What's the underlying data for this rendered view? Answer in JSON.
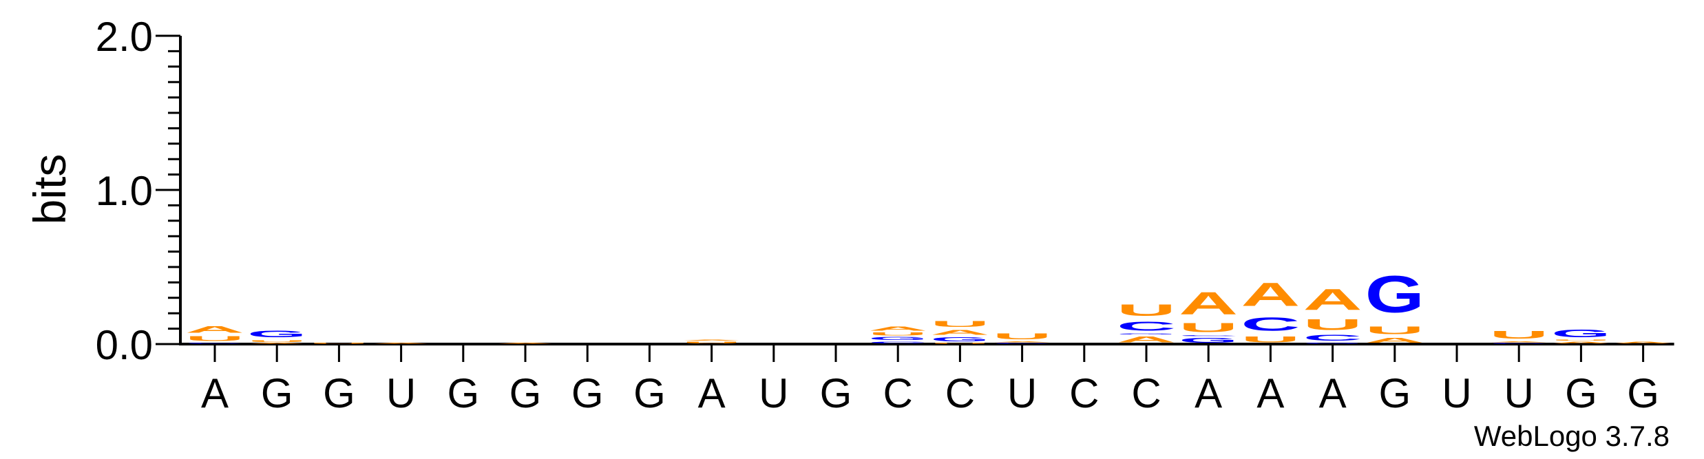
{
  "chart_data": {
    "type": "sequence-logo",
    "ylabel": "bits",
    "ylim": [
      0,
      2.0
    ],
    "yticks": [
      "0.0",
      "1.0",
      "2.0"
    ],
    "y_minor_step": 0.1,
    "grid": false,
    "legend": "none",
    "credit": "WebLogo 3.7.8",
    "colors": {
      "A": "#ff8c00",
      "U": "#ff8c00",
      "G": "#0000ff",
      "C": "#0000ff"
    },
    "positions": [
      {
        "label": "A",
        "stack": [
          {
            "letter": "C",
            "h": 0.01
          },
          {
            "letter": "U",
            "h": 0.05
          },
          {
            "letter": "A",
            "h": 0.07
          }
        ]
      },
      {
        "label": "G",
        "stack": [
          {
            "letter": "A",
            "h": 0.01
          },
          {
            "letter": "U",
            "h": 0.02
          },
          {
            "letter": "G",
            "h": 0.07
          }
        ]
      },
      {
        "label": "G",
        "stack": [
          {
            "letter": "U",
            "h": 0.01
          }
        ]
      },
      {
        "label": "U",
        "stack": [
          {
            "letter": "A",
            "h": 0.01
          }
        ]
      },
      {
        "label": "G",
        "stack": []
      },
      {
        "label": "G",
        "stack": [
          {
            "letter": "A",
            "h": 0.01
          }
        ]
      },
      {
        "label": "G",
        "stack": []
      },
      {
        "label": "G",
        "stack": []
      },
      {
        "label": "A",
        "stack": [
          {
            "letter": "U",
            "h": 0.02
          },
          {
            "letter": "A",
            "h": 0.01
          }
        ]
      },
      {
        "label": "U",
        "stack": []
      },
      {
        "label": "G",
        "stack": []
      },
      {
        "label": "C",
        "stack": [
          {
            "letter": "C",
            "h": 0.02
          },
          {
            "letter": "G",
            "h": 0.03
          },
          {
            "letter": "U",
            "h": 0.03
          },
          {
            "letter": "A",
            "h": 0.04
          }
        ]
      },
      {
        "label": "C",
        "stack": [
          {
            "letter": "U",
            "h": 0.01
          },
          {
            "letter": "G",
            "h": 0.04
          },
          {
            "letter": "A",
            "h": 0.05
          },
          {
            "letter": "U",
            "h": 0.06
          }
        ]
      },
      {
        "label": "U",
        "stack": [
          {
            "letter": "C",
            "h": 0.01
          },
          {
            "letter": "A",
            "h": 0.01
          },
          {
            "letter": "U",
            "h": 0.06
          }
        ]
      },
      {
        "label": "C",
        "stack": []
      },
      {
        "label": "C",
        "stack": [
          {
            "letter": "A",
            "h": 0.06
          },
          {
            "letter": "G",
            "h": 0.01
          },
          {
            "letter": "C",
            "h": 0.09
          },
          {
            "letter": "U",
            "h": 0.12
          }
        ]
      },
      {
        "label": "A",
        "stack": [
          {
            "letter": "G",
            "h": 0.05
          },
          {
            "letter": "C",
            "h": 0.01
          },
          {
            "letter": "U",
            "h": 0.09
          },
          {
            "letter": "A",
            "h": 0.23
          }
        ]
      },
      {
        "label": "A",
        "stack": [
          {
            "letter": "U",
            "h": 0.06
          },
          {
            "letter": "C",
            "h": 0.14
          },
          {
            "letter": "A",
            "h": 0.24
          }
        ]
      },
      {
        "label": "A",
        "stack": [
          {
            "letter": "G",
            "h": 0.01
          },
          {
            "letter": "C",
            "h": 0.06
          },
          {
            "letter": "U",
            "h": 0.11
          },
          {
            "letter": "A",
            "h": 0.22
          }
        ]
      },
      {
        "label": "G",
        "stack": [
          {
            "letter": "A",
            "h": 0.05
          },
          {
            "letter": "U",
            "h": 0.08
          },
          {
            "letter": "G",
            "h": 0.38
          }
        ]
      },
      {
        "label": "U",
        "stack": []
      },
      {
        "label": "U",
        "stack": [
          {
            "letter": "C",
            "h": 0.01
          },
          {
            "letter": "A",
            "h": 0.01
          },
          {
            "letter": "U",
            "h": 0.08
          }
        ]
      },
      {
        "label": "G",
        "stack": [
          {
            "letter": "A",
            "h": 0.02
          },
          {
            "letter": "U",
            "h": 0.01
          },
          {
            "letter": "G",
            "h": 0.08
          }
        ]
      },
      {
        "label": "G",
        "stack": [
          {
            "letter": "A",
            "h": 0.02
          }
        ]
      }
    ]
  }
}
